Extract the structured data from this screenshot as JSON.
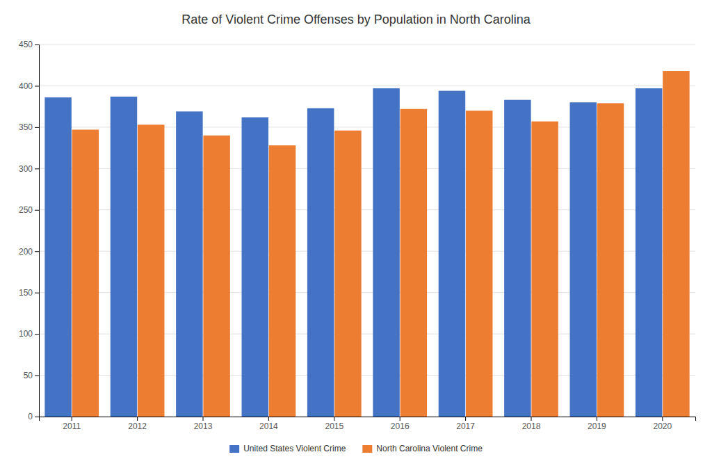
{
  "chart_data": {
    "type": "bar",
    "title": "Rate of Violent Crime Offenses by Population in North Carolina",
    "categories": [
      "2011",
      "2012",
      "2013",
      "2014",
      "2015",
      "2016",
      "2017",
      "2018",
      "2019",
      "2020"
    ],
    "series": [
      {
        "name": "United States Violent Crime",
        "color": "#4472C4",
        "values": [
          386,
          387,
          369,
          362,
          373,
          397,
          394,
          383,
          380,
          397
        ]
      },
      {
        "name": "North Carolina Violent Crime",
        "color": "#ED7D31",
        "values": [
          347,
          353,
          340,
          328,
          346,
          372,
          370,
          357,
          379,
          418
        ]
      }
    ],
    "ylim": [
      0,
      450
    ],
    "yticks": [
      0,
      50,
      100,
      150,
      200,
      250,
      300,
      350,
      400,
      450
    ],
    "grid": true,
    "legend": "bottom"
  }
}
